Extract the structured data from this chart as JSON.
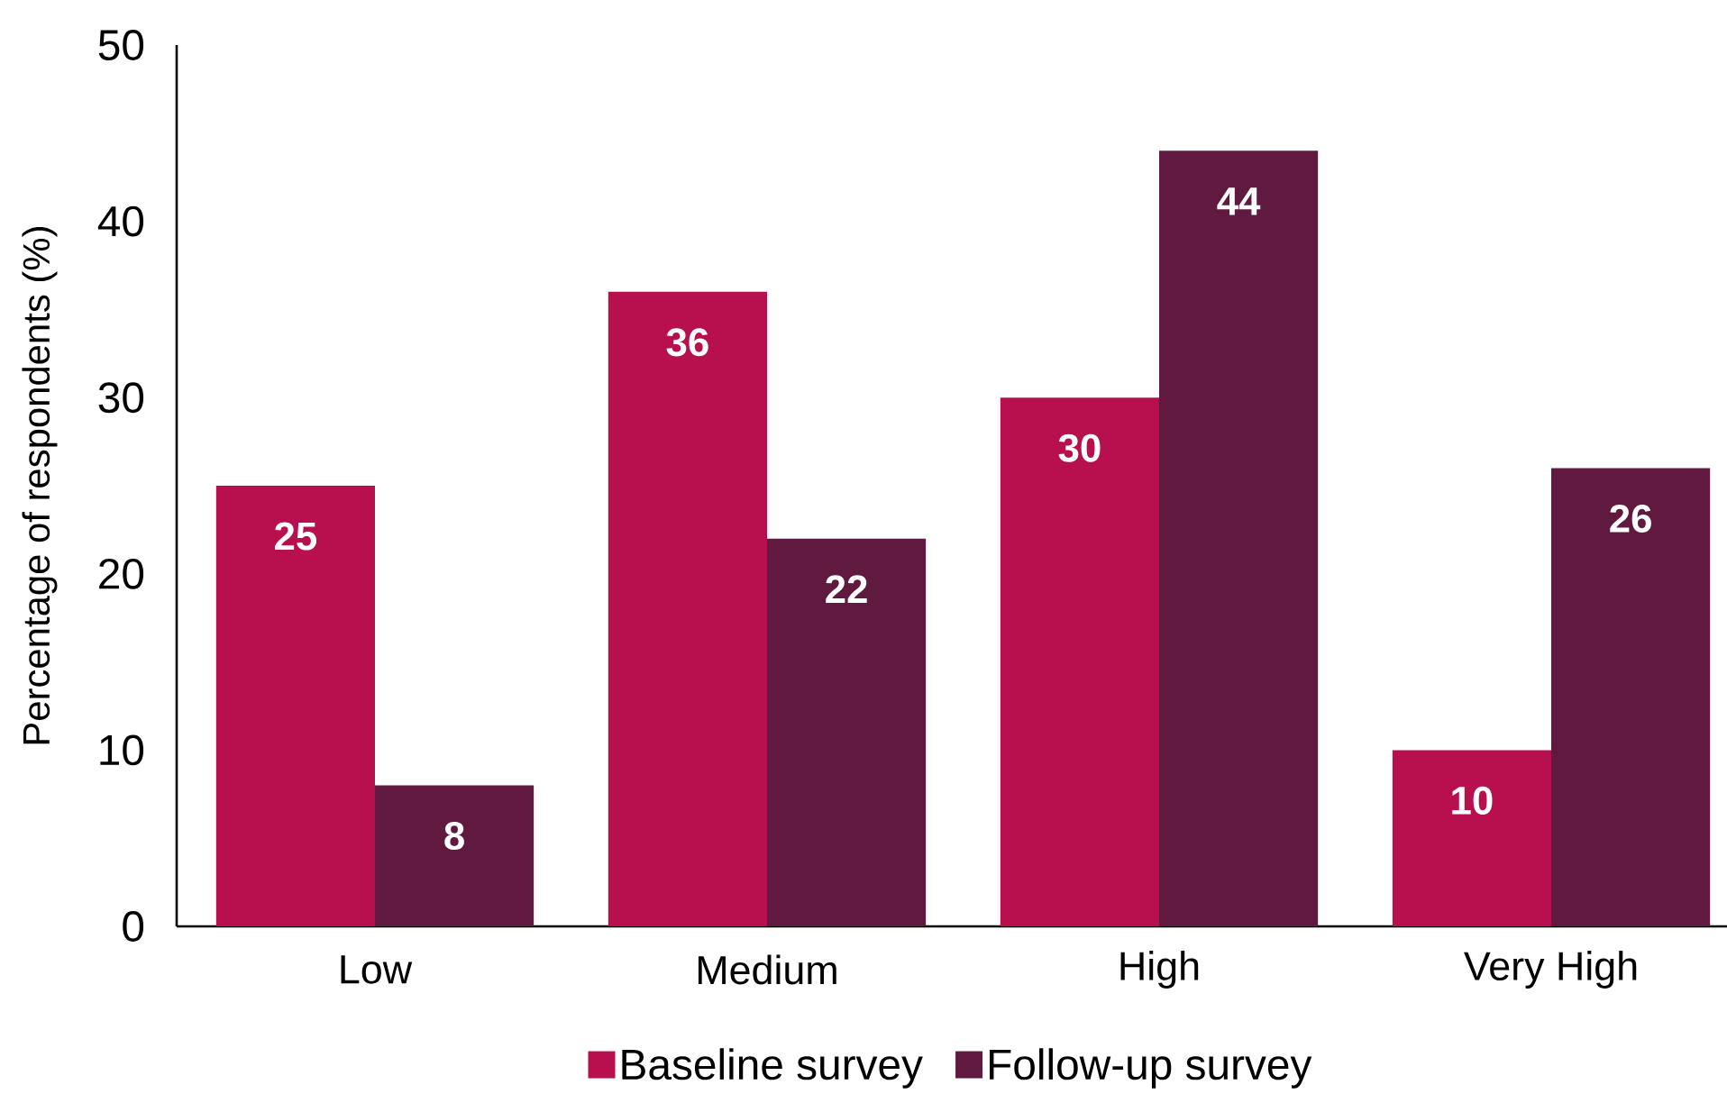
{
  "chart_data": {
    "type": "bar",
    "ylabel": "Percentage of respondents (%)",
    "categories": [
      "Low",
      "Medium",
      "High",
      "Very High"
    ],
    "series": [
      {
        "name": "Baseline survey",
        "color": "#b80f4e",
        "values": [
          25,
          36,
          30,
          10
        ]
      },
      {
        "name": "Follow-up survey",
        "color": "#611a3f",
        "values": [
          8,
          22,
          44,
          26
        ]
      }
    ],
    "ylim": [
      0,
      50
    ],
    "yticks": [
      0,
      10,
      20,
      30,
      40,
      50
    ],
    "data_labels": true,
    "legend": "bottom"
  }
}
